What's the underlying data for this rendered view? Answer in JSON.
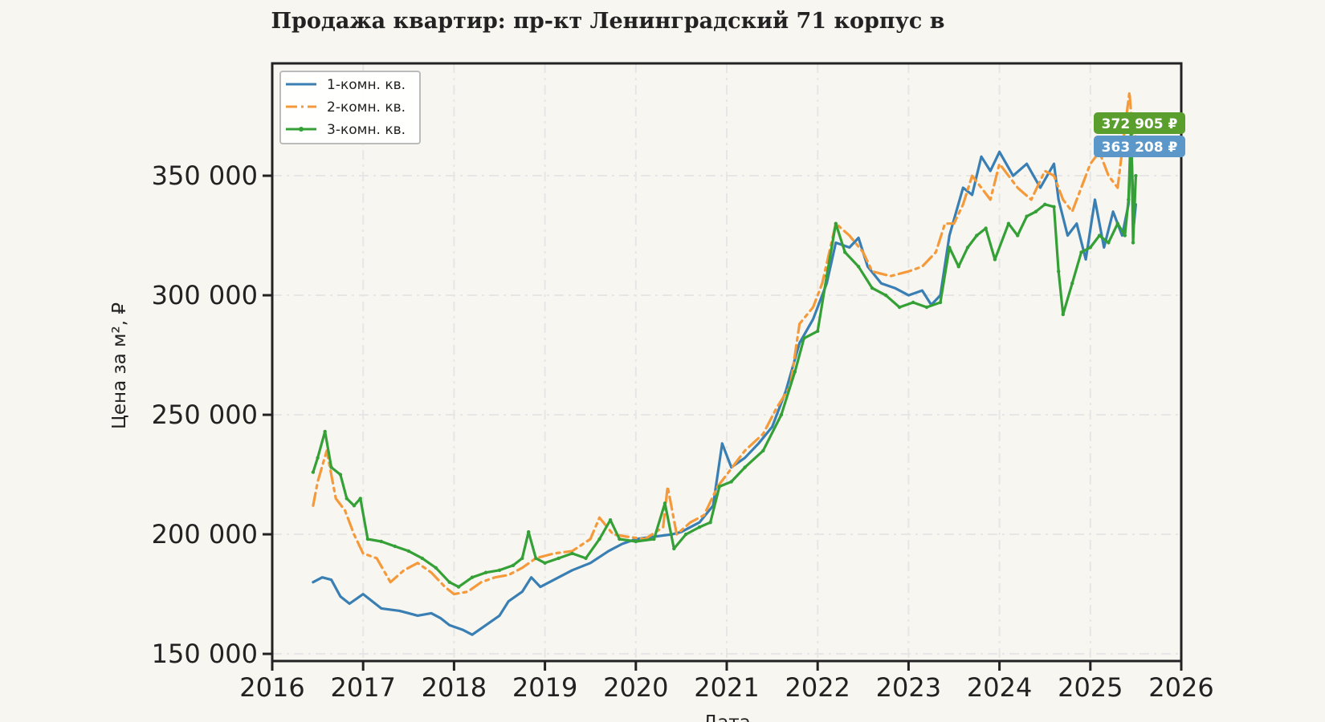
{
  "chart_data": {
    "type": "line",
    "title": "Продажа квартир: пр-кт Ленинградский 71 корпус в",
    "xlabel": "Дата",
    "ylabel": "Цена за м², ₽",
    "x_ticks": [
      "2016",
      "2017",
      "2018",
      "2019",
      "2020",
      "2021",
      "2022",
      "2023",
      "2024",
      "2025",
      "2026"
    ],
    "y_ticks": [
      "150 000",
      "200 000",
      "250 000",
      "300 000",
      "350 000"
    ],
    "xlim": [
      2016,
      2026
    ],
    "ylim": [
      147000,
      397000
    ],
    "grid": true,
    "legend_position": "top-left",
    "series": [
      {
        "name": "1-комн. кв.",
        "color": "#3a7fb4",
        "style": "solid",
        "points": [
          [
            2016.45,
            180000
          ],
          [
            2016.55,
            182000
          ],
          [
            2016.65,
            181000
          ],
          [
            2016.75,
            174000
          ],
          [
            2016.85,
            171000
          ],
          [
            2017.0,
            175000
          ],
          [
            2017.2,
            169000
          ],
          [
            2017.4,
            168000
          ],
          [
            2017.6,
            166000
          ],
          [
            2017.75,
            167000
          ],
          [
            2017.85,
            165000
          ],
          [
            2017.95,
            162000
          ],
          [
            2018.1,
            160000
          ],
          [
            2018.2,
            158000
          ],
          [
            2018.35,
            162000
          ],
          [
            2018.5,
            166000
          ],
          [
            2018.6,
            172000
          ],
          [
            2018.75,
            176000
          ],
          [
            2018.85,
            182000
          ],
          [
            2018.95,
            178000
          ],
          [
            2019.1,
            181000
          ],
          [
            2019.3,
            185000
          ],
          [
            2019.5,
            188000
          ],
          [
            2019.7,
            193000
          ],
          [
            2019.85,
            196000
          ],
          [
            2020.0,
            198000
          ],
          [
            2020.2,
            199000
          ],
          [
            2020.4,
            200000
          ],
          [
            2020.5,
            201000
          ],
          [
            2020.7,
            205000
          ],
          [
            2020.85,
            212000
          ],
          [
            2020.95,
            238000
          ],
          [
            2021.05,
            228000
          ],
          [
            2021.2,
            232000
          ],
          [
            2021.35,
            238000
          ],
          [
            2021.5,
            245000
          ],
          [
            2021.65,
            260000
          ],
          [
            2021.8,
            280000
          ],
          [
            2021.95,
            290000
          ],
          [
            2022.1,
            305000
          ],
          [
            2022.2,
            322000
          ],
          [
            2022.35,
            320000
          ],
          [
            2022.45,
            324000
          ],
          [
            2022.55,
            312000
          ],
          [
            2022.7,
            305000
          ],
          [
            2022.85,
            303000
          ],
          [
            2023.0,
            300000
          ],
          [
            2023.15,
            302000
          ],
          [
            2023.25,
            296000
          ],
          [
            2023.35,
            300000
          ],
          [
            2023.45,
            325000
          ],
          [
            2023.6,
            345000
          ],
          [
            2023.7,
            342000
          ],
          [
            2023.8,
            358000
          ],
          [
            2023.9,
            352000
          ],
          [
            2024.0,
            360000
          ],
          [
            2024.15,
            350000
          ],
          [
            2024.3,
            355000
          ],
          [
            2024.45,
            345000
          ],
          [
            2024.6,
            355000
          ],
          [
            2024.65,
            340000
          ],
          [
            2024.75,
            325000
          ],
          [
            2024.85,
            330000
          ],
          [
            2024.95,
            315000
          ],
          [
            2025.05,
            340000
          ],
          [
            2025.15,
            320000
          ],
          [
            2025.25,
            335000
          ],
          [
            2025.35,
            325000
          ],
          [
            2025.42,
            338000
          ],
          [
            2025.45,
            363208
          ],
          [
            2025.48,
            330000
          ],
          [
            2025.5,
            338000
          ]
        ],
        "last_value": "363 208 ₽"
      },
      {
        "name": "2-комн. кв.",
        "color": "#f59a3b",
        "style": "dashdot",
        "points": [
          [
            2016.45,
            212000
          ],
          [
            2016.5,
            222000
          ],
          [
            2016.6,
            235000
          ],
          [
            2016.7,
            215000
          ],
          [
            2016.8,
            210000
          ],
          [
            2016.9,
            200000
          ],
          [
            2017.0,
            192000
          ],
          [
            2017.15,
            190000
          ],
          [
            2017.3,
            180000
          ],
          [
            2017.45,
            185000
          ],
          [
            2017.6,
            188000
          ],
          [
            2017.75,
            184000
          ],
          [
            2017.9,
            178000
          ],
          [
            2018.0,
            175000
          ],
          [
            2018.15,
            176000
          ],
          [
            2018.3,
            180000
          ],
          [
            2018.45,
            182000
          ],
          [
            2018.6,
            183000
          ],
          [
            2018.75,
            186000
          ],
          [
            2018.9,
            190000
          ],
          [
            2019.1,
            192000
          ],
          [
            2019.3,
            193000
          ],
          [
            2019.5,
            198000
          ],
          [
            2019.6,
            207000
          ],
          [
            2019.75,
            200000
          ],
          [
            2019.9,
            199000
          ],
          [
            2020.1,
            198000
          ],
          [
            2020.3,
            203000
          ],
          [
            2020.35,
            220000
          ],
          [
            2020.45,
            200000
          ],
          [
            2020.6,
            205000
          ],
          [
            2020.75,
            208000
          ],
          [
            2020.9,
            220000
          ],
          [
            2021.0,
            225000
          ],
          [
            2021.2,
            235000
          ],
          [
            2021.4,
            242000
          ],
          [
            2021.55,
            253000
          ],
          [
            2021.7,
            262000
          ],
          [
            2021.8,
            288000
          ],
          [
            2021.95,
            295000
          ],
          [
            2022.05,
            305000
          ],
          [
            2022.2,
            330000
          ],
          [
            2022.35,
            325000
          ],
          [
            2022.5,
            318000
          ],
          [
            2022.6,
            310000
          ],
          [
            2022.8,
            308000
          ],
          [
            2023.0,
            310000
          ],
          [
            2023.15,
            312000
          ],
          [
            2023.3,
            318000
          ],
          [
            2023.4,
            330000
          ],
          [
            2023.5,
            330000
          ],
          [
            2023.6,
            338000
          ],
          [
            2023.7,
            350000
          ],
          [
            2023.8,
            345000
          ],
          [
            2023.9,
            340000
          ],
          [
            2024.0,
            355000
          ],
          [
            2024.2,
            345000
          ],
          [
            2024.35,
            340000
          ],
          [
            2024.5,
            352000
          ],
          [
            2024.6,
            350000
          ],
          [
            2024.7,
            340000
          ],
          [
            2024.8,
            335000
          ],
          [
            2024.9,
            345000
          ],
          [
            2025.0,
            355000
          ],
          [
            2025.1,
            360000
          ],
          [
            2025.2,
            350000
          ],
          [
            2025.3,
            345000
          ],
          [
            2025.38,
            370000
          ],
          [
            2025.43,
            385000
          ],
          [
            2025.48,
            360000
          ],
          [
            2025.5,
            368000
          ]
        ]
      },
      {
        "name": "3-комн. кв.",
        "color": "#34a036",
        "style": "solid-marker",
        "points": [
          [
            2016.45,
            226000
          ],
          [
            2016.5,
            232000
          ],
          [
            2016.58,
            243000
          ],
          [
            2016.65,
            228000
          ],
          [
            2016.75,
            225000
          ],
          [
            2016.82,
            215000
          ],
          [
            2016.9,
            212000
          ],
          [
            2016.97,
            215000
          ],
          [
            2017.05,
            198000
          ],
          [
            2017.2,
            197000
          ],
          [
            2017.35,
            195000
          ],
          [
            2017.5,
            193000
          ],
          [
            2017.65,
            190000
          ],
          [
            2017.8,
            186000
          ],
          [
            2017.95,
            180000
          ],
          [
            2018.05,
            178000
          ],
          [
            2018.2,
            182000
          ],
          [
            2018.35,
            184000
          ],
          [
            2018.5,
            185000
          ],
          [
            2018.65,
            187000
          ],
          [
            2018.75,
            190000
          ],
          [
            2018.82,
            201000
          ],
          [
            2018.9,
            190000
          ],
          [
            2019.0,
            188000
          ],
          [
            2019.15,
            190000
          ],
          [
            2019.3,
            192000
          ],
          [
            2019.45,
            190000
          ],
          [
            2019.6,
            198000
          ],
          [
            2019.72,
            206000
          ],
          [
            2019.82,
            198000
          ],
          [
            2020.0,
            197000
          ],
          [
            2020.2,
            198000
          ],
          [
            2020.32,
            213000
          ],
          [
            2020.42,
            194000
          ],
          [
            2020.55,
            200000
          ],
          [
            2020.7,
            203000
          ],
          [
            2020.82,
            205000
          ],
          [
            2020.92,
            220000
          ],
          [
            2021.05,
            222000
          ],
          [
            2021.2,
            228000
          ],
          [
            2021.4,
            235000
          ],
          [
            2021.6,
            250000
          ],
          [
            2021.75,
            268000
          ],
          [
            2021.85,
            282000
          ],
          [
            2022.0,
            285000
          ],
          [
            2022.1,
            308000
          ],
          [
            2022.2,
            330000
          ],
          [
            2022.3,
            318000
          ],
          [
            2022.45,
            312000
          ],
          [
            2022.6,
            303000
          ],
          [
            2022.75,
            300000
          ],
          [
            2022.9,
            295000
          ],
          [
            2023.05,
            297000
          ],
          [
            2023.2,
            295000
          ],
          [
            2023.35,
            297000
          ],
          [
            2023.45,
            320000
          ],
          [
            2023.55,
            312000
          ],
          [
            2023.65,
            320000
          ],
          [
            2023.75,
            325000
          ],
          [
            2023.85,
            328000
          ],
          [
            2023.95,
            315000
          ],
          [
            2024.1,
            330000
          ],
          [
            2024.2,
            325000
          ],
          [
            2024.3,
            333000
          ],
          [
            2024.4,
            335000
          ],
          [
            2024.5,
            338000
          ],
          [
            2024.6,
            337000
          ],
          [
            2024.65,
            310000
          ],
          [
            2024.7,
            292000
          ],
          [
            2024.8,
            305000
          ],
          [
            2024.9,
            318000
          ],
          [
            2025.0,
            320000
          ],
          [
            2025.1,
            325000
          ],
          [
            2025.2,
            322000
          ],
          [
            2025.3,
            330000
          ],
          [
            2025.38,
            325000
          ],
          [
            2025.42,
            340000
          ],
          [
            2025.45,
            372905
          ],
          [
            2025.47,
            322000
          ],
          [
            2025.5,
            350000
          ]
        ],
        "last_value": "372 905 ₽"
      }
    ]
  }
}
